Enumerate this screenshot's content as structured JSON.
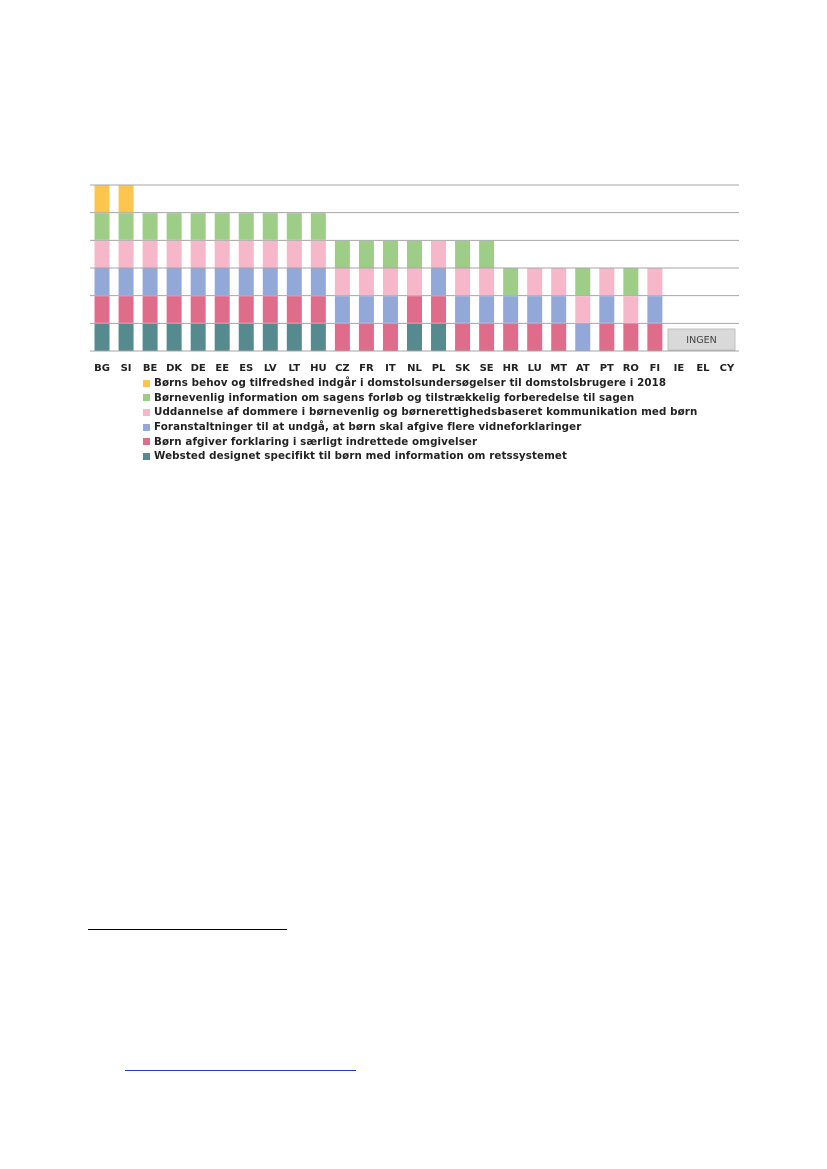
{
  "chart_data": {
    "type": "stacked-bar",
    "categories": [
      "BG",
      "SI",
      "BE",
      "DK",
      "DE",
      "EE",
      "ES",
      "LV",
      "LT",
      "HU",
      "CZ",
      "FR",
      "IT",
      "NL",
      "PL",
      "SK",
      "SE",
      "HR",
      "LU",
      "MT",
      "AT",
      "PT",
      "RO",
      "FI",
      "IE",
      "EL",
      "CY"
    ],
    "ylim": [
      0,
      6
    ],
    "grid": true,
    "legend_position": "bottom",
    "series": [
      {
        "name": "Websted designet specifikt til børn med information om retssystemet",
        "color": "#558b8f",
        "values": [
          1,
          1,
          1,
          1,
          1,
          1,
          1,
          1,
          1,
          1,
          0,
          0,
          0,
          1,
          1,
          0,
          0,
          0,
          0,
          0,
          0,
          0,
          0,
          0,
          0,
          0,
          0
        ]
      },
      {
        "name": "Børn afgiver forklaring i særligt indrettede omgivelser",
        "color": "#e06c8c",
        "values": [
          1,
          1,
          1,
          1,
          1,
          1,
          1,
          1,
          1,
          1,
          1,
          1,
          1,
          1,
          1,
          1,
          1,
          1,
          1,
          1,
          0,
          1,
          1,
          1,
          0,
          0,
          0
        ]
      },
      {
        "name": "Foranstaltninger til at undgå, at børn skal afgive flere vidneforklaringer",
        "color": "#92a8d8",
        "values": [
          1,
          1,
          1,
          1,
          1,
          1,
          1,
          1,
          1,
          1,
          1,
          1,
          1,
          0,
          1,
          1,
          1,
          1,
          1,
          1,
          1,
          1,
          0,
          1,
          0,
          0,
          0
        ]
      },
      {
        "name": "Uddannelse af dommere i børnevenlig og børnerettighedsbaseret kommunikation med børn",
        "color": "#f5b7c9",
        "values": [
          1,
          1,
          1,
          1,
          1,
          1,
          1,
          1,
          1,
          1,
          1,
          1,
          1,
          1,
          1,
          1,
          1,
          0,
          1,
          1,
          1,
          1,
          1,
          1,
          0,
          0,
          0
        ]
      },
      {
        "name": "Børnevenlig information om sagens forløb og tilstrækkelig forberedelse til sagen",
        "color": "#9dcd86",
        "values": [
          1,
          1,
          1,
          1,
          1,
          1,
          1,
          1,
          1,
          1,
          1,
          1,
          1,
          1,
          0,
          1,
          1,
          1,
          0,
          0,
          1,
          0,
          1,
          0,
          0,
          0,
          0
        ]
      },
      {
        "name": "Børns behov og tilfredshed indgår i domstolsundersøgelser til domstolsbrugere i 2018",
        "color": "#fcc54e",
        "values": [
          1,
          1,
          0,
          0,
          0,
          0,
          0,
          0,
          0,
          0,
          0,
          0,
          0,
          0,
          0,
          0,
          0,
          0,
          0,
          0,
          0,
          0,
          0,
          0,
          0,
          0,
          0
        ]
      }
    ],
    "annotation": {
      "text": "INGEN",
      "categories": [
        "IE",
        "EL",
        "CY"
      ]
    }
  },
  "legend": [
    {
      "label": "Børns behov og tilfredshed indgår i  domstolsundersøgelser til domstolsbrugere i 2018",
      "color": "#fcc54e"
    },
    {
      "label": "Børnevenlig information om sagens forløb og tilstrækkelig forberedelse til sagen",
      "color": "#9dcd86"
    },
    {
      "label": "Uddannelse af dommere i børnevenlig og børnerettighedsbaseret kommunikation med børn",
      "color": "#f5b7c9"
    },
    {
      "label": "Foranstaltninger til at undgå, at børn skal afgive flere vidneforklaringer",
      "color": "#92a8d8"
    },
    {
      "label": "Børn afgiver forklaring i særligt indrettede omgivelser",
      "color": "#e06c8c"
    },
    {
      "label": "Websted designet specifikt til børn med information om retssystemet",
      "color": "#558b8f"
    }
  ]
}
